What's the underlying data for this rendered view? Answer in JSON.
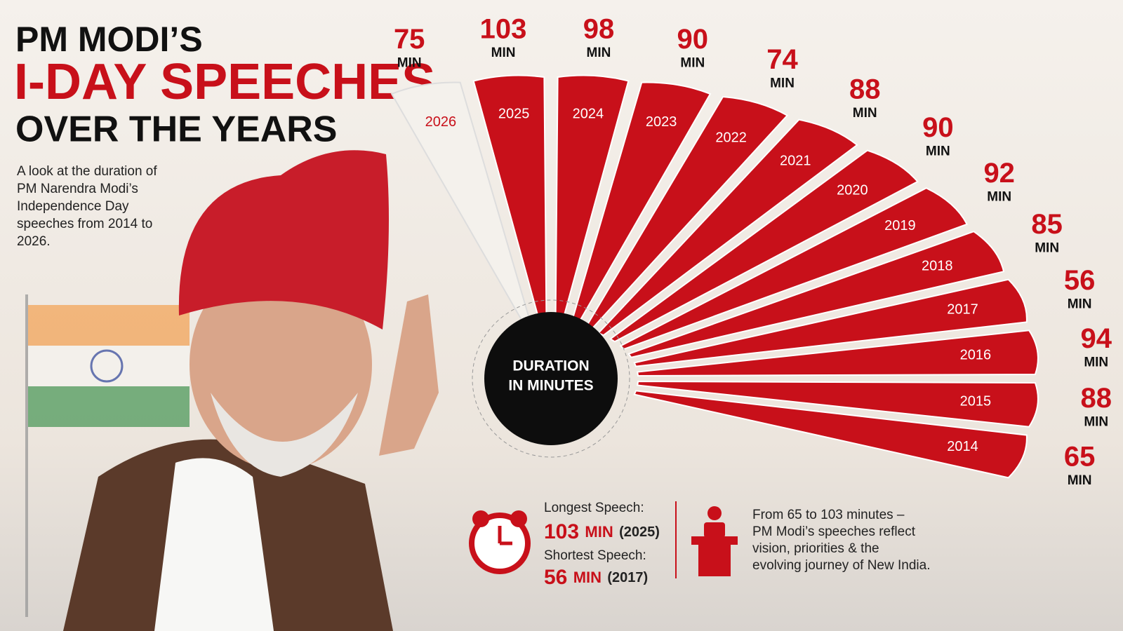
{
  "chart_data": {
    "type": "fan",
    "title": [
      "PM MODI’S",
      "I-DAY SPEECHES",
      "OVER THE YEARS"
    ],
    "subtitle": "A look at the duration of PM Narendra Modi’s Independence Day speeches from 2014 to 2026.",
    "center_label": [
      "DURATION",
      "IN MINUTES"
    ],
    "unit": "MIN",
    "categories": [
      "2026",
      "2025",
      "2024",
      "2023",
      "2022",
      "2021",
      "2020",
      "2019",
      "2018",
      "2017",
      "2016",
      "2015",
      "2014"
    ],
    "values": [
      75,
      103,
      98,
      90,
      74,
      88,
      90,
      92,
      85,
      56,
      94,
      88,
      65
    ],
    "color": "#c8101a",
    "highlight_category": "2026",
    "highlight_color": "#f4f1ec"
  },
  "summary": {
    "longest_label": "Longest Speech:",
    "longest_value": "103",
    "longest_unit": "MIN",
    "longest_year": "(2025)",
    "shortest_label": "Shortest Speech:",
    "shortest_value": "56",
    "shortest_unit": "MIN",
    "shortest_year": "(2017)",
    "note": [
      "From 65 to 103 minutes –",
      "PM Modi’s speeches reflect",
      "vision, priorities & the",
      "evolving journey of New India."
    ]
  }
}
